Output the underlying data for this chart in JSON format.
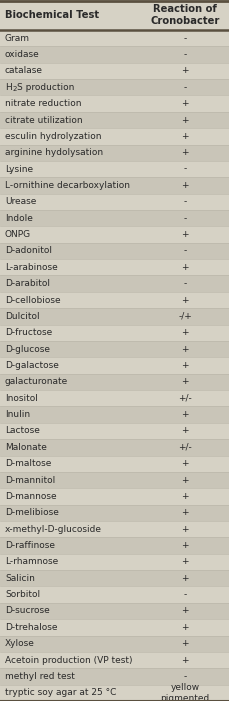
{
  "title_col1": "Biochemical Test",
  "title_col2": "Reaction of\nCronobacter",
  "rows": [
    [
      "Gram",
      "-"
    ],
    [
      "oxidase",
      "-"
    ],
    [
      "catalase",
      "+"
    ],
    [
      "H2S production",
      "-"
    ],
    [
      "nitrate reduction",
      "+"
    ],
    [
      "citrate utilization",
      "+"
    ],
    [
      "esculin hydrolyzation",
      "+"
    ],
    [
      "arginine hydolysation",
      "+"
    ],
    [
      "Lysine",
      "-"
    ],
    [
      "L-ornithine decarboxylation",
      "+"
    ],
    [
      "Urease",
      "-"
    ],
    [
      "Indole",
      "-"
    ],
    [
      "ONPG",
      "+"
    ],
    [
      "D-adonitol",
      "-"
    ],
    [
      "L-arabinose",
      "+"
    ],
    [
      "D-arabitol",
      "-"
    ],
    [
      "D-cellobiose",
      "+"
    ],
    [
      "Dulcitol",
      "-/+"
    ],
    [
      "D-fructose",
      "+"
    ],
    [
      "D-glucose",
      "+"
    ],
    [
      "D-galactose",
      "+"
    ],
    [
      "galacturonate",
      "+"
    ],
    [
      "Inositol",
      "+/-"
    ],
    [
      "Inulin",
      "+"
    ],
    [
      "Lactose",
      "+"
    ],
    [
      "Malonate",
      "+/-"
    ],
    [
      "D-maltose",
      "+"
    ],
    [
      "D-mannitol",
      "+"
    ],
    [
      "D-mannose",
      "+"
    ],
    [
      "D-melibiose",
      "+"
    ],
    [
      "x-methyl-D-glucoside",
      "+"
    ],
    [
      "D-raffinose",
      "+"
    ],
    [
      "L-rhamnose",
      "+"
    ],
    [
      "Salicin",
      "+"
    ],
    [
      "Sorbitol",
      "-"
    ],
    [
      "D-sucrose",
      "+"
    ],
    [
      "D-trehalose",
      "+"
    ],
    [
      "Xylose",
      "+"
    ],
    [
      "Acetoin production (VP test)",
      "+"
    ],
    [
      "methyl red test",
      "-"
    ],
    [
      "tryptic soy agar at 25 °C",
      "yellow\npigmented"
    ]
  ],
  "bg_light": "#d6d2c5",
  "bg_dark": "#c9c5b8",
  "header_top_line": "#5a5040",
  "header_bot_line": "#5a5040",
  "text_color": "#2a2a2a",
  "font_size": 6.5,
  "header_font_size": 7.2
}
